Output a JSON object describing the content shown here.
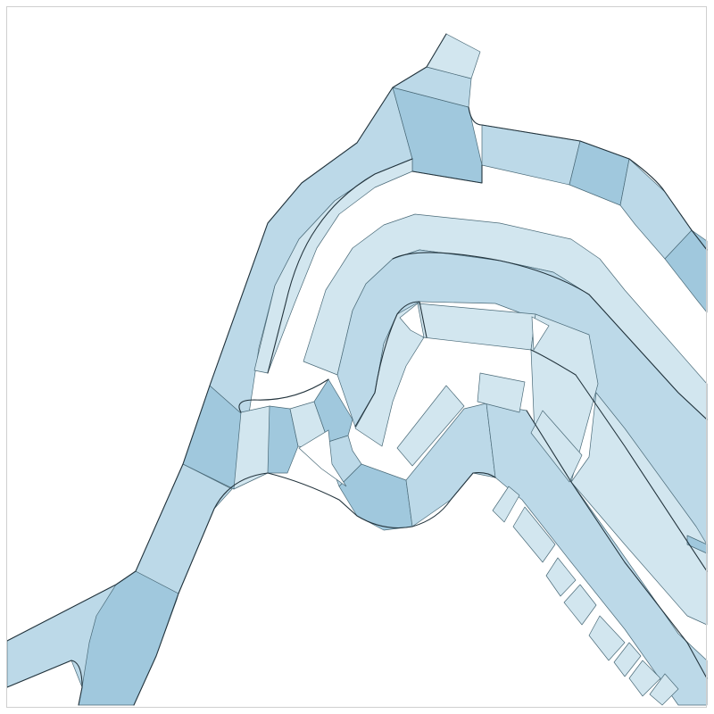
{
  "map": {
    "colors": {
      "background": "#ffffff",
      "light": "#d2e6ef",
      "medium": "#bcd9e8",
      "dark": "#a0c8dd",
      "outline": "#4a6a78",
      "edge": "#23343d",
      "frame": "#cfcfcf"
    },
    "legend": [],
    "labels": []
  }
}
